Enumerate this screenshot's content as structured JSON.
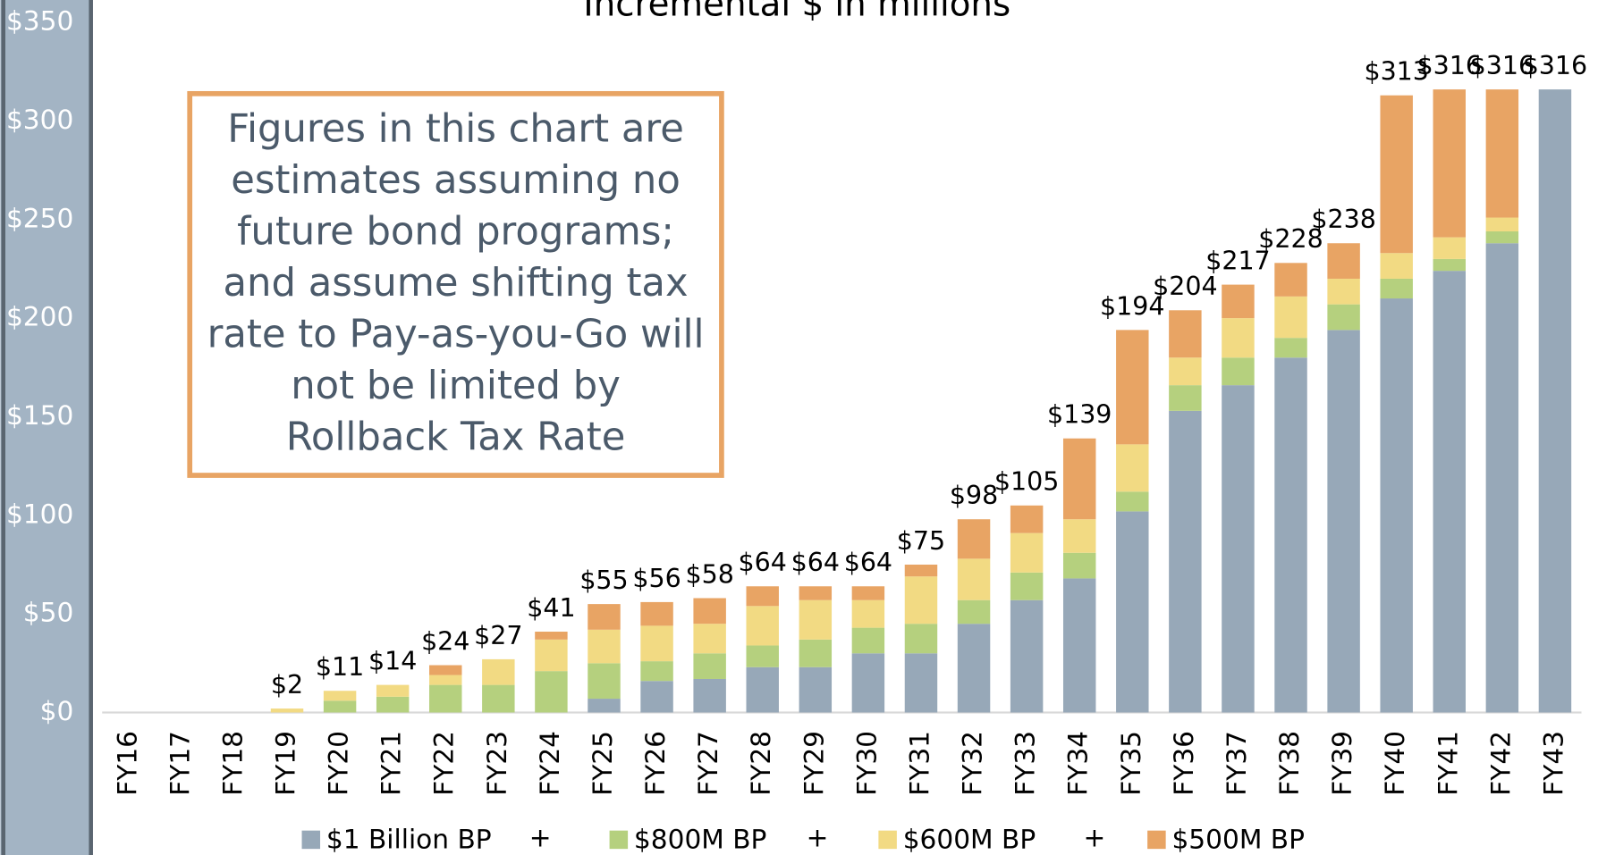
{
  "chart_data": {
    "type": "stacked_bar",
    "title": "Incremental $ in millions",
    "categories": [
      "FY16",
      "FY17",
      "FY18",
      "FY19",
      "FY20",
      "FY21",
      "FY22",
      "FY23",
      "FY24",
      "FY25",
      "FY26",
      "FY27",
      "FY28",
      "FY29",
      "FY30",
      "FY31",
      "FY32",
      "FY33",
      "FY34",
      "FY35",
      "FY36",
      "FY37",
      "FY38",
      "FY39",
      "FY40",
      "FY41",
      "FY42",
      "FY43"
    ],
    "series": [
      {
        "name": "$1 Billion BP",
        "color": "#97a8b8",
        "values": [
          0,
          0,
          0,
          0,
          0,
          0,
          0,
          0,
          0,
          7,
          16,
          17,
          23,
          23,
          30,
          30,
          45,
          57,
          68,
          102,
          153,
          166,
          180,
          194,
          210,
          224,
          238,
          316
        ]
      },
      {
        "name": "$800M BP",
        "color": "#b5d07e",
        "values": [
          0,
          0,
          0,
          0,
          6,
          8,
          14,
          14,
          21,
          18,
          10,
          13,
          11,
          14,
          13,
          15,
          12,
          14,
          13,
          10,
          13,
          14,
          10,
          13,
          10,
          6,
          6,
          0
        ]
      },
      {
        "name": "$600M BP",
        "color": "#f2da83",
        "values": [
          0,
          0,
          0,
          2,
          5,
          6,
          5,
          13,
          16,
          17,
          18,
          15,
          20,
          20,
          14,
          24,
          21,
          20,
          17,
          24,
          14,
          20,
          21,
          13,
          13,
          11,
          7,
          0
        ]
      },
      {
        "name": "$500M BP",
        "color": "#e8a464",
        "values": [
          0,
          0,
          0,
          0,
          0,
          0,
          5,
          0,
          4,
          13,
          12,
          13,
          10,
          7,
          7,
          6,
          20,
          14,
          41,
          58,
          24,
          17,
          17,
          18,
          80,
          75,
          65,
          0
        ]
      }
    ],
    "totals": [
      null,
      null,
      null,
      2,
      11,
      14,
      24,
      27,
      41,
      55,
      56,
      58,
      64,
      64,
      64,
      75,
      98,
      105,
      139,
      194,
      204,
      217,
      228,
      238,
      313,
      316,
      316,
      316
    ],
    "total_labels": [
      null,
      null,
      null,
      "$2",
      "$11",
      "$14",
      "$24",
      "$27",
      "$41",
      "$55",
      "$56",
      "$58",
      "$64",
      "$64",
      "$64",
      "$75",
      "$98",
      "$105",
      "$139",
      "$194",
      "$204",
      "$217",
      "$228",
      "$238",
      "$313",
      "$316",
      "$316",
      "$316"
    ],
    "ylim": [
      0,
      350
    ],
    "yticks": [
      {
        "value": 0,
        "label": "$0"
      },
      {
        "value": 50,
        "label": "$50"
      },
      {
        "value": 100,
        "label": "$100"
      },
      {
        "value": 150,
        "label": "$150"
      },
      {
        "value": 200,
        "label": "$200"
      },
      {
        "value": 250,
        "label": "$250"
      },
      {
        "value": 300,
        "label": "$300"
      },
      {
        "value": 350,
        "label": "$350"
      }
    ],
    "legend_separator": "+",
    "annotation": [
      "Figures in this chart are",
      "estimates assuming no",
      "future bond programs;",
      "and assume shifting tax",
      "rate to Pay-as-you-Go will",
      "not be limited by",
      "Rollback Tax Rate"
    ]
  }
}
